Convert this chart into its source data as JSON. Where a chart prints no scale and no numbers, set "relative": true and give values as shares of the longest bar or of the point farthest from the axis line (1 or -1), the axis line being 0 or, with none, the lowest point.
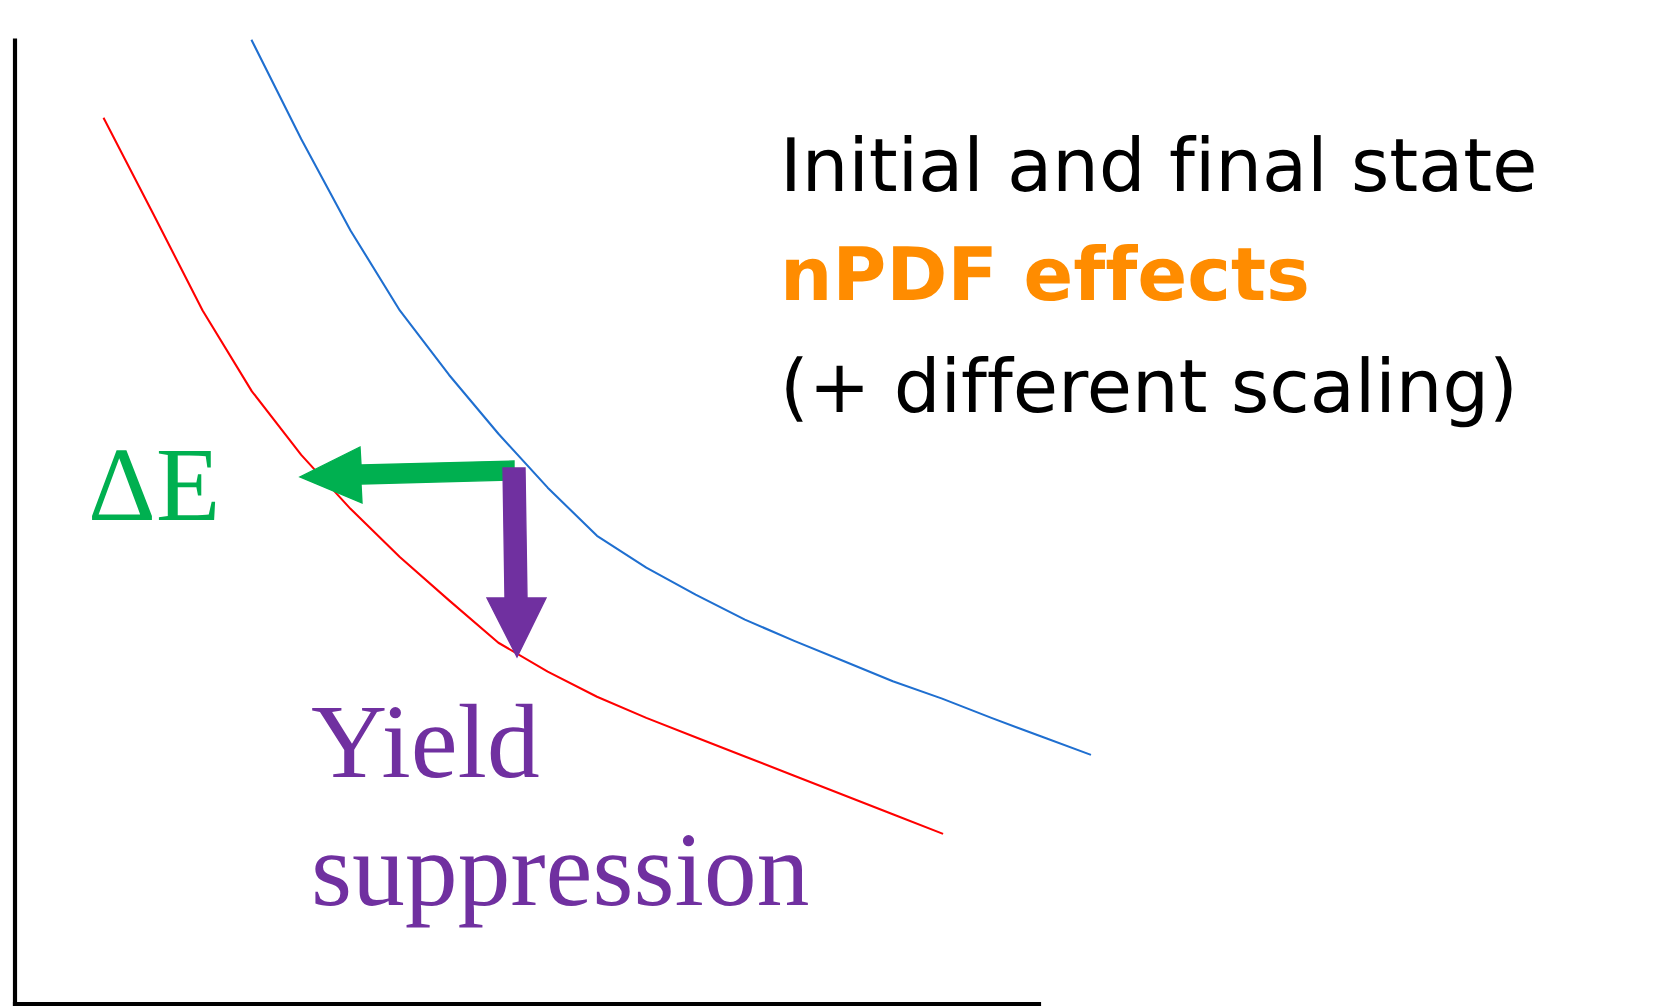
{
  "chart_data": {
    "type": "line",
    "relative": true,
    "categories": [
      null,
      null,
      null,
      null,
      null,
      null,
      null,
      null,
      null,
      null,
      null,
      null,
      null,
      null,
      null,
      null,
      null,
      null,
      null,
      null,
      null
    ],
    "series": [
      {
        "color": "#ff0000",
        "values": [
          0.919,
          0.82,
          0.72,
          0.636,
          0.57,
          0.514,
          0.464,
          0.419,
          0.375,
          0.345,
          0.319,
          0.297,
          0.277,
          0.257,
          0.237,
          0.217,
          0.197,
          0.177,
          null,
          null,
          null
        ]
      },
      {
        "color": "#1f6fd0",
        "values": [
          null,
          null,
          null,
          1.0,
          0.898,
          0.803,
          0.72,
          0.653,
          0.592,
          0.536,
          0.486,
          0.453,
          0.425,
          0.399,
          0.377,
          0.356,
          0.335,
          0.317,
          0.297,
          0.278,
          0.259
        ]
      }
    ],
    "annotations": [
      "Initial and final state",
      "nPDF effects",
      "(+ different scaling)",
      "ΔE",
      "Yield suppression"
    ]
  }
}
